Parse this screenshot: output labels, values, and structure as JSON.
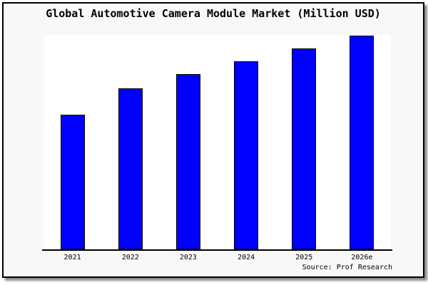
{
  "chart_data": {
    "type": "bar",
    "title": "Global Automotive Camera Module Market (Million USD)",
    "categories": [
      "2021",
      "2022",
      "2023",
      "2024",
      "2025",
      "2026e"
    ],
    "values": [
      62.9,
      75.1,
      81.6,
      87.8,
      93.7,
      99.8
    ],
    "values_unit": "percent of plot height (no numeric y-axis scale is shown in the chart)",
    "values_relative_to_max_pct": [
      63.0,
      75.3,
      81.8,
      88.0,
      93.9,
      100.0
    ],
    "xlabel": "",
    "ylabel": "",
    "ylim": [
      0,
      100
    ],
    "grid": false,
    "legend": false,
    "bar_color": "#0000ff",
    "bar_border_color": "#000000"
  },
  "source": {
    "label": "Source: Prof Research"
  },
  "colors": {
    "figure_background": "#f8f8f8",
    "plot_background": "#ffffff",
    "frame_border": "#000000",
    "frame_shadow": "#8c8c8c",
    "axis_line": "#000000",
    "text": "#000000"
  }
}
